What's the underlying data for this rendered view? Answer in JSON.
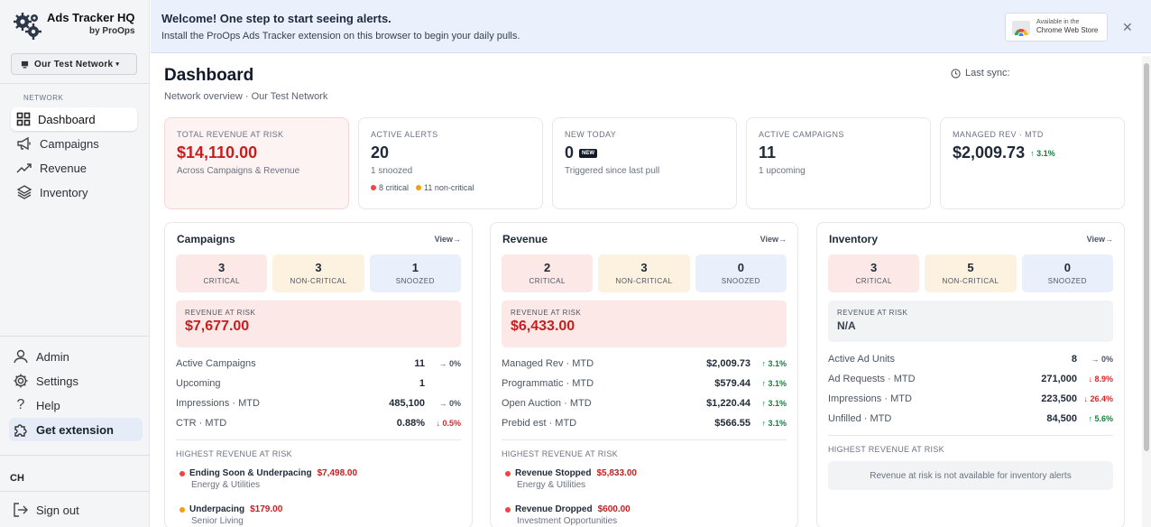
{
  "brand": {
    "title": "Ads Tracker HQ",
    "subtitle": "by ProOps"
  },
  "network_select": {
    "value": "Our Test Network"
  },
  "sidebar": {
    "section_label": "NETWORK",
    "items": [
      {
        "label": "Dashboard",
        "icon": "dashboard-icon",
        "active": true
      },
      {
        "label": "Campaigns",
        "icon": "megaphone-icon"
      },
      {
        "label": "Revenue",
        "icon": "trend-icon"
      },
      {
        "label": "Inventory",
        "icon": "layers-icon"
      }
    ],
    "bottom": [
      {
        "label": "Admin",
        "icon": "user-icon"
      },
      {
        "label": "Settings",
        "icon": "gear-icon"
      },
      {
        "label": "Help",
        "icon": "help-icon"
      },
      {
        "label": "Get extension",
        "icon": "puzzle-icon"
      }
    ],
    "avatar": "CH",
    "signout": "Sign out"
  },
  "banner": {
    "title": "Welcome! One step to start seeing alerts.",
    "subtitle": "Install the ProOps Ads Tracker extension on this browser to begin your daily pulls.",
    "store_line1": "Available in the",
    "store_line2": "Chrome Web Store"
  },
  "header": {
    "title": "Dashboard",
    "subtitle": "Network overview · Our Test Network",
    "last_sync": "Last sync:"
  },
  "stats": [
    {
      "label": "TOTAL REVENUE AT RISK",
      "value": "$14,110.00",
      "note": "Across Campaigns & Revenue"
    },
    {
      "label": "ACTIVE ALERTS",
      "value": "20",
      "note": "1 snoozed",
      "critical": "8 critical",
      "noncritical": "11 non-critical"
    },
    {
      "label": "NEW TODAY",
      "value": "0",
      "badge": "NEW",
      "note": "Triggered since last pull"
    },
    {
      "label": "ACTIVE CAMPAIGNS",
      "value": "11",
      "note": "1 upcoming"
    },
    {
      "label": "MANAGED REV · MTD",
      "value": "$2,009.73",
      "delta": "↑ 3.1%"
    }
  ],
  "panels": {
    "campaigns": {
      "title": "Campaigns",
      "view": "View→",
      "counts": [
        {
          "num": "3",
          "label": "CRITICAL"
        },
        {
          "num": "3",
          "label": "NON-CRITICAL"
        },
        {
          "num": "1",
          "label": "SNOOZED"
        }
      ],
      "rar_label": "REVENUE AT RISK",
      "rar_value": "$7,677.00",
      "metrics": [
        {
          "label": "Active Campaigns",
          "value": "11",
          "delta": "→ 0%",
          "dir": "flat"
        },
        {
          "label": "Upcoming",
          "value": "1",
          "delta": "",
          "dir": "flat"
        },
        {
          "label": "Impressions · MTD",
          "value": "485,100",
          "delta": "→ 0%",
          "dir": "flat"
        },
        {
          "label": "CTR · MTD",
          "value": "0.88%",
          "delta": "↓ 0.5%",
          "dir": "down"
        }
      ],
      "hr_title": "HIGHEST REVENUE AT RISK",
      "hr_items": [
        {
          "name": "Ending Soon & Underpacing",
          "amount": "$7,498.00",
          "sub": "Energy & Utilities",
          "color": "red"
        },
        {
          "name": "Underpacing",
          "amount": "$179.00",
          "sub": "Senior Living",
          "color": "amber"
        }
      ]
    },
    "revenue": {
      "title": "Revenue",
      "view": "View→",
      "counts": [
        {
          "num": "2",
          "label": "CRITICAL"
        },
        {
          "num": "3",
          "label": "NON-CRITICAL"
        },
        {
          "num": "0",
          "label": "SNOOZED"
        }
      ],
      "rar_label": "REVENUE AT RISK",
      "rar_value": "$6,433.00",
      "metrics": [
        {
          "label": "Managed Rev · MTD",
          "value": "$2,009.73",
          "delta": "↑ 3.1%",
          "dir": "up"
        },
        {
          "label": "Programmatic · MTD",
          "value": "$579.44",
          "delta": "↑ 3.1%",
          "dir": "up"
        },
        {
          "label": "Open Auction · MTD",
          "value": "$1,220.44",
          "delta": "↑ 3.1%",
          "dir": "up"
        },
        {
          "label": "Prebid est · MTD",
          "value": "$566.55",
          "delta": "↑ 3.1%",
          "dir": "up"
        }
      ],
      "hr_title": "HIGHEST REVENUE AT RISK",
      "hr_items": [
        {
          "name": "Revenue Stopped",
          "amount": "$5,833.00",
          "sub": "Energy & Utilities",
          "color": "red"
        },
        {
          "name": "Revenue Dropped",
          "amount": "$600.00",
          "sub": "Investment Opportunities",
          "color": "red"
        }
      ]
    },
    "inventory": {
      "title": "Inventory",
      "view": "View→",
      "counts": [
        {
          "num": "3",
          "label": "CRITICAL"
        },
        {
          "num": "5",
          "label": "NON-CRITICAL"
        },
        {
          "num": "0",
          "label": "SNOOZED"
        }
      ],
      "rar_label": "REVENUE AT RISK",
      "rar_value": "N/A",
      "metrics": [
        {
          "label": "Active Ad Units",
          "value": "8",
          "delta": "→ 0%",
          "dir": "flat"
        },
        {
          "label": "Ad Requests · MTD",
          "value": "271,000",
          "delta": "↓ 8.9%",
          "dir": "down"
        },
        {
          "label": "Impressions · MTD",
          "value": "223,500",
          "delta": "↓ 26.4%",
          "dir": "down"
        },
        {
          "label": "Unfilled · MTD",
          "value": "84,500",
          "delta": "↑ 5.6%",
          "dir": "up"
        }
      ],
      "hr_title": "HIGHEST REVENUE AT RISK",
      "na_text": "Revenue at risk is not available for inventory alerts"
    }
  },
  "colors": {
    "critical": "#c81e1e",
    "up": "#15803d",
    "down": "#dc2626",
    "banner_bg": "#eaf1fd"
  }
}
